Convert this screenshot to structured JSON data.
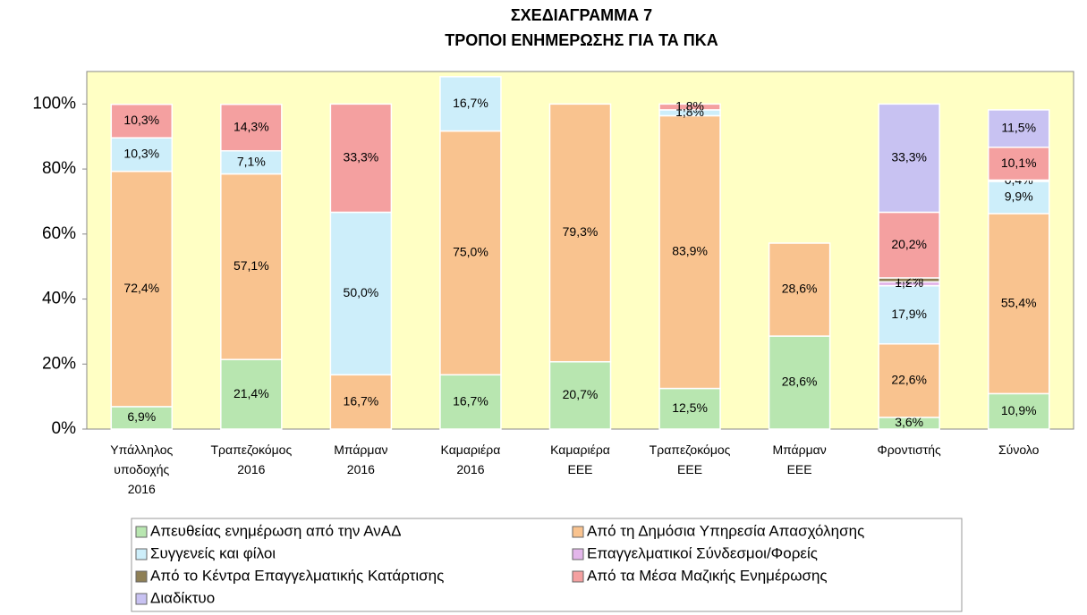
{
  "chart_data": {
    "type": "stacked_bar",
    "title": "ΣΧΕΔΙΑΓΡΑΜΜΑ 7",
    "subtitle": "ΤΡΟΠΟΙ ΕΝΗΜΕΡΩΣΗΣ ΓΙΑ ΤΑ ΠΚΑ",
    "categories": [
      "Υπάλληλος υποδοχής 2016",
      "Τραπεζοκόμος 2016",
      "Μπάρμαν 2016",
      "Καμαριέρα 2016",
      "Καμαριέρα ΕΕΕ",
      "Τραπεζοκόμος ΕΕΕ",
      "Μπάρμαν ΕΕΕ",
      "Φροντιστής",
      "Σύνολο"
    ],
    "series": [
      {
        "name": "Απευθείας ενημέρωση από την ΑνΑΔ",
        "color": "#b8e6b0",
        "values": [
          6.9,
          21.4,
          null,
          16.7,
          20.7,
          12.5,
          28.6,
          3.6,
          10.9
        ],
        "value_labels": [
          "6,9%",
          "21,4%",
          null,
          "16,7%",
          "20,7%",
          "12,5%",
          "28,6%",
          "3,6%",
          "10,9%"
        ]
      },
      {
        "name": "Από τη Δημόσια Υπηρεσία Απασχόλησης",
        "color": "#f9c38f",
        "values": [
          72.4,
          57.1,
          16.7,
          75.0,
          79.3,
          83.9,
          28.6,
          22.6,
          55.4
        ],
        "value_labels": [
          "72,4%",
          "57,1%",
          "16,7%",
          "75,0%",
          "79,3%",
          "83,9%",
          "28,6%",
          "22,6%",
          "55,4%"
        ]
      },
      {
        "name": "Συγγενείς και φίλοι",
        "color": "#cdeefa",
        "values": [
          10.3,
          7.1,
          50.0,
          16.7,
          null,
          1.8,
          null,
          17.9,
          9.9
        ],
        "value_labels": [
          "10,3%",
          "7,1%",
          "50,0%",
          "16,7%",
          null,
          "1,8%",
          null,
          "17,9%",
          "9,9%"
        ]
      },
      {
        "name": "Επαγγελματικοί Σύνδεσμοι/Φορείς",
        "color": "#e3b6ea",
        "values": [
          null,
          null,
          null,
          null,
          null,
          null,
          null,
          1.2,
          0.4
        ],
        "value_labels": [
          null,
          null,
          null,
          null,
          null,
          null,
          null,
          "1,2%",
          "0,4%"
        ]
      },
      {
        "name": "Από το Κέντρα Επαγγελματικής Κατάρτισης",
        "color": "#8e7f55",
        "values": [
          null,
          null,
          null,
          null,
          null,
          null,
          null,
          1.2,
          null
        ],
        "value_labels": [
          null,
          null,
          null,
          null,
          null,
          null,
          null,
          "1,2%",
          null
        ]
      },
      {
        "name": "Από τα Μέσα Μαζικής Ενημέρωσης",
        "color": "#f4a0a0",
        "values": [
          10.3,
          14.3,
          33.3,
          null,
          null,
          1.8,
          null,
          20.2,
          10.1
        ],
        "value_labels": [
          "10,3%",
          "14,3%",
          "33,3%",
          null,
          null,
          "1,8%",
          null,
          "20,2%",
          "10,1%"
        ]
      },
      {
        "name": "Διαδίκτυο",
        "color": "#c8c2f2",
        "values": [
          null,
          null,
          null,
          null,
          null,
          null,
          null,
          33.3,
          11.5
        ],
        "value_labels": [
          null,
          null,
          null,
          null,
          null,
          null,
          null,
          "33,3%",
          "11,5%"
        ]
      }
    ],
    "ylim": [
      0,
      110
    ],
    "yticks": [
      {
        "value": 0,
        "label": "0%"
      },
      {
        "value": 20,
        "label": "20%"
      },
      {
        "value": 40,
        "label": "40%"
      },
      {
        "value": 60,
        "label": "60%"
      },
      {
        "value": 80,
        "label": "80%"
      },
      {
        "value": 100,
        "label": "100%"
      }
    ],
    "plot_background": "#ffffc4"
  }
}
